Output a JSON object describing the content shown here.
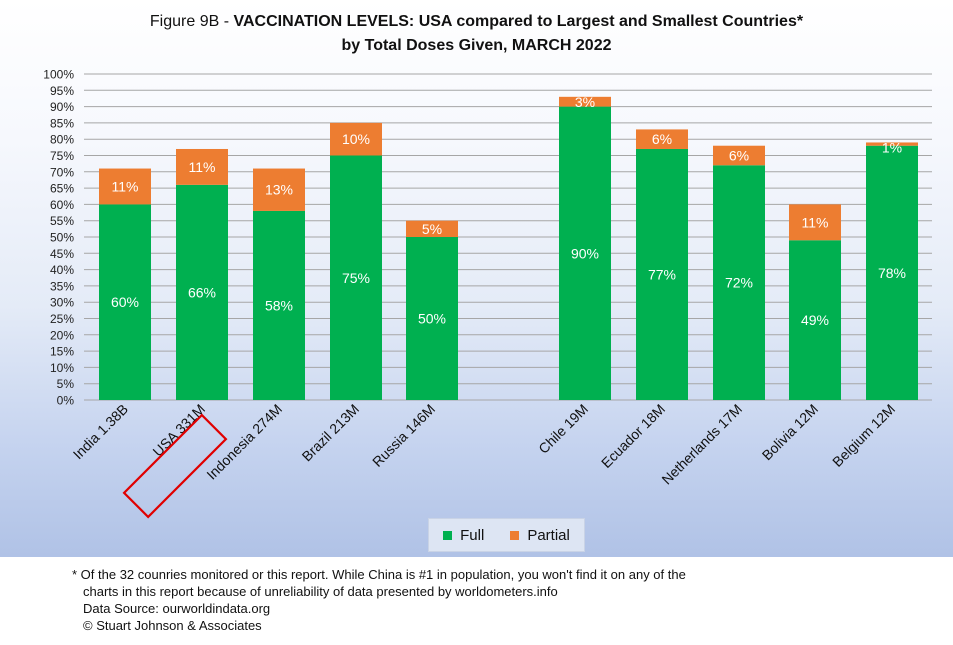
{
  "title": {
    "prefix": "Figure 9B - ",
    "bold": "VACCINATION LEVELS:  USA compared to Largest and Smallest Countries*",
    "line2": "by Total Doses Given, MARCH 2022"
  },
  "colors": {
    "full": "#00b050",
    "partial": "#ed7d31",
    "highlight_box": "#e00000"
  },
  "chart_data": {
    "type": "bar",
    "stacked": true,
    "categories": [
      "India 1.38B",
      "USA 331M",
      "Indonesia 274M",
      "Brazil 213M",
      "Russia 146M",
      "Chile 19M",
      "Ecuador 18M",
      "Netherlands 17M",
      "Bolivia 12M",
      "Belgium 12M"
    ],
    "series": [
      {
        "name": "Full",
        "values": [
          60,
          66,
          58,
          75,
          50,
          90,
          77,
          72,
          49,
          78
        ],
        "labels": [
          "60%",
          "66%",
          "58%",
          "75%",
          "50%",
          "90%",
          "77%",
          "72%",
          "49%",
          "78%"
        ]
      },
      {
        "name": "Partial",
        "values": [
          11,
          11,
          13,
          10,
          5,
          3,
          6,
          6,
          11,
          1
        ],
        "labels": [
          "11%",
          "11%",
          "13%",
          "10%",
          "5%",
          "3%",
          "6%",
          "6%",
          "11%",
          "1%"
        ]
      }
    ],
    "ylim": [
      0,
      100
    ],
    "yticks": [
      "0%",
      "5%",
      "10%",
      "15%",
      "20%",
      "25%",
      "30%",
      "35%",
      "40%",
      "45%",
      "50%",
      "55%",
      "60%",
      "65%",
      "70%",
      "75%",
      "80%",
      "85%",
      "90%",
      "95%",
      "100%"
    ],
    "grid": true,
    "highlighted_category": "USA 331M",
    "legend": {
      "position": "bottom",
      "entries": [
        "Full",
        "Partial"
      ]
    }
  },
  "footnotes": {
    "note_line1": "* Of the 32 counries monitored or this report. While China is #1 in population, you won't find it on any of the",
    "note_line2": "charts in this report because of unreliability of data presented by worldometers.info",
    "source": "Data Source:  ourworldindata.org",
    "copyright": "© Stuart Johnson & Associates"
  }
}
